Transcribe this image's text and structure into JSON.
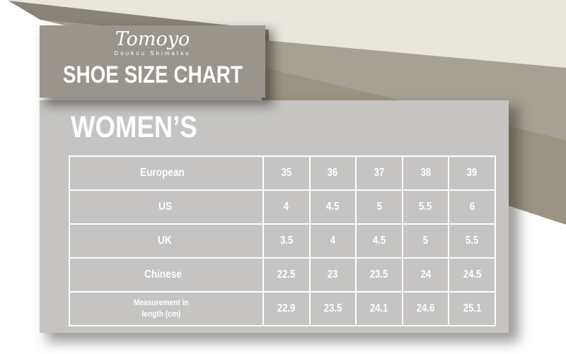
{
  "logo": {
    "brand": "Tomoyo",
    "tagline": "Doukou Shimatsu"
  },
  "header": {
    "title": "SHOE SIZE CHART"
  },
  "section": {
    "title": "WOMEN’S"
  },
  "table": {
    "rows": [
      {
        "label": "European",
        "values": [
          "35",
          "36",
          "37",
          "38",
          "39"
        ]
      },
      {
        "label": "US",
        "values": [
          "4",
          "4.5",
          "5",
          "5.5",
          "6"
        ]
      },
      {
        "label": "UK",
        "values": [
          "3.5",
          "4",
          "4.5",
          "5",
          "5.5"
        ]
      },
      {
        "label": "Chinese",
        "values": [
          "22.5",
          "23",
          "23.5",
          "24",
          "24.5"
        ]
      },
      {
        "label": "Measurement in\nlength (cm)",
        "values": [
          "22.9",
          "23.5",
          "24.1",
          "24.6",
          "25.1"
        ]
      }
    ]
  },
  "chart_data": {
    "type": "table",
    "title": "SHOE SIZE CHART",
    "subtitle": "WOMEN'S",
    "brand": "Tomoyo Doukou Shimatsu",
    "row_labels": [
      "European",
      "US",
      "UK",
      "Chinese",
      "Measurement in length (cm)"
    ],
    "series": [
      {
        "name": "European",
        "values": [
          35,
          36,
          37,
          38,
          39
        ]
      },
      {
        "name": "US",
        "values": [
          4,
          4.5,
          5,
          5.5,
          6
        ]
      },
      {
        "name": "UK",
        "values": [
          3.5,
          4,
          4.5,
          5,
          5.5
        ]
      },
      {
        "name": "Chinese",
        "values": [
          22.5,
          23,
          23.5,
          24,
          24.5
        ]
      },
      {
        "name": "Measurement in length (cm)",
        "values": [
          22.9,
          23.5,
          24.1,
          24.6,
          25.1
        ]
      }
    ]
  },
  "colors": {
    "cream": "#e9e6de",
    "dark_wedge": "#8a8478",
    "taupe_light": "#a6a194",
    "taupe_mid": "#9a9483",
    "header_bg": "#99948c",
    "panel_bg": "#c5c4c2",
    "text": "#ffffff"
  }
}
